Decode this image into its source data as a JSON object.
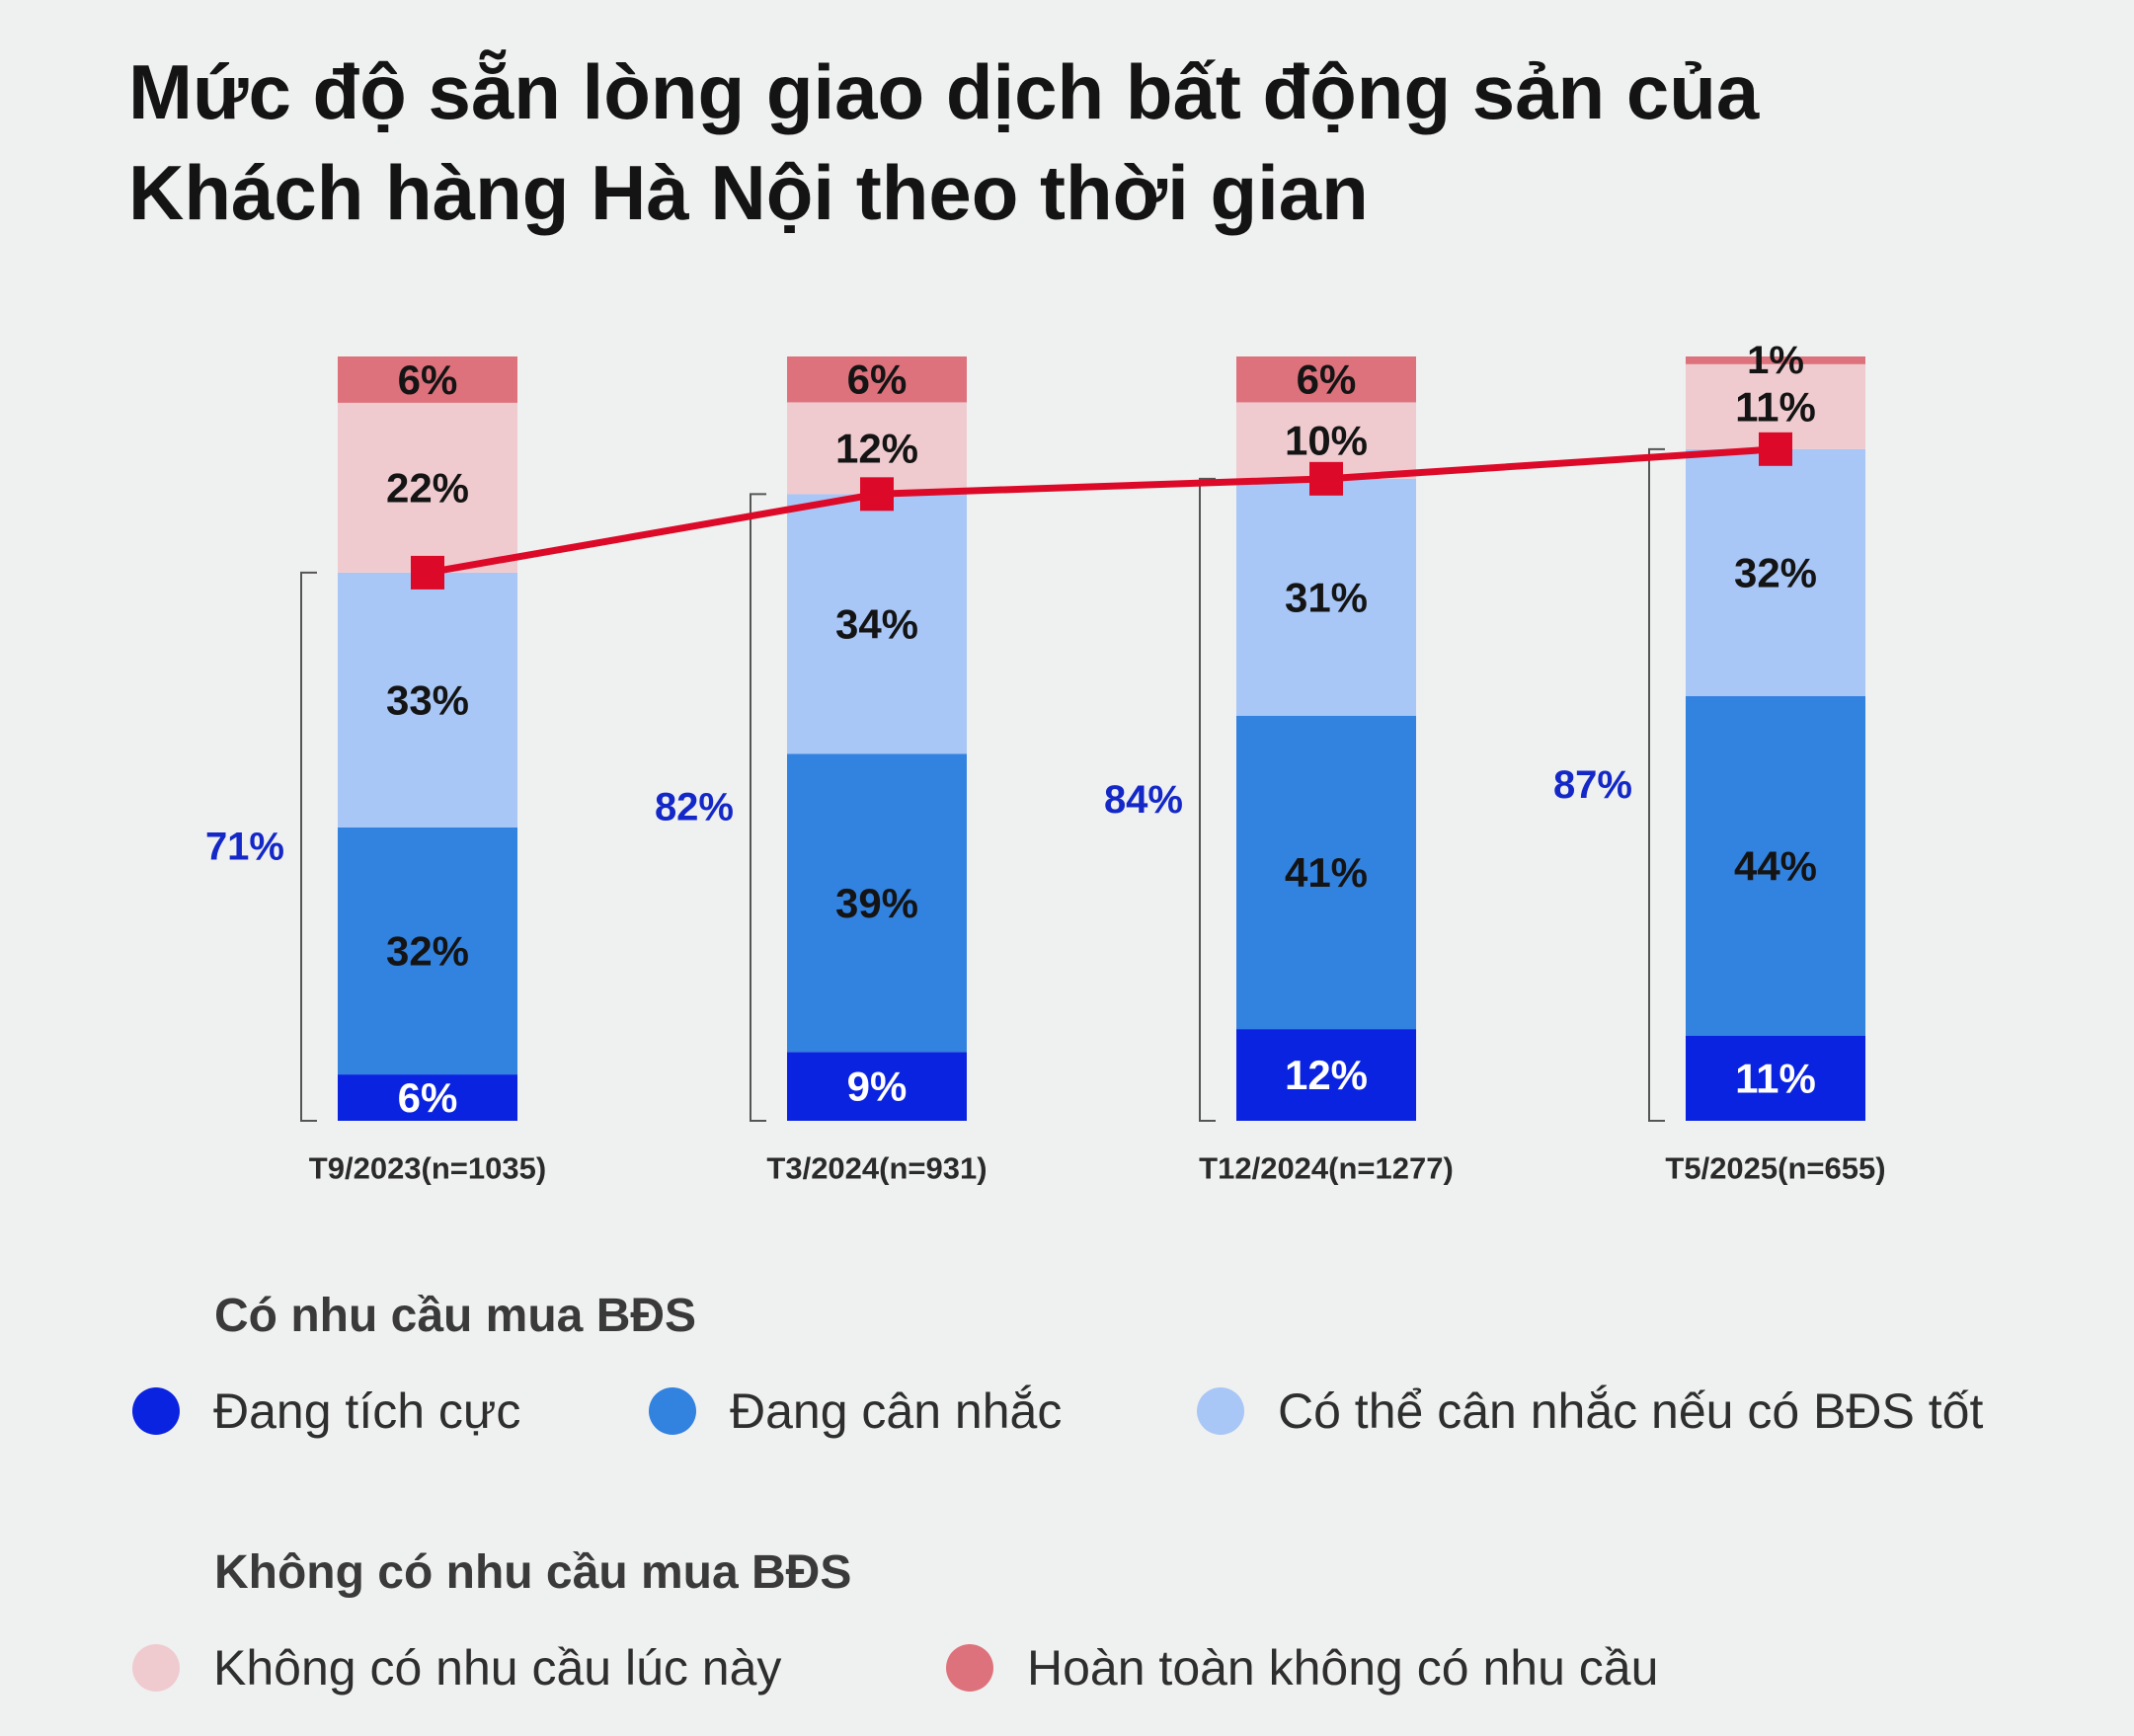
{
  "title": {
    "line1": "Mức độ sẵn lòng giao dịch bất động sản của",
    "line2": "Khách hàng Hà Nội theo thời gian"
  },
  "colors": {
    "dang_tich_cuc": "#0a23e0",
    "dang_can_nhac": "#3282e0",
    "co_the_can_nhac": "#a8c6f6",
    "khong_co_luc_nay": "#efcbd0",
    "hoan_toan_khong": "#de727c",
    "line": "#dc0a28",
    "bracket_label": "#1428c8"
  },
  "legend": {
    "group1_title": "Có nhu cầu mua BĐS",
    "group2_title": "Không có nhu cầu mua BĐS",
    "items": [
      {
        "label": "Đang tích cực",
        "color": "#0a23e0"
      },
      {
        "label": "Đang cân nhắc",
        "color": "#3282e0"
      },
      {
        "label": "Có thể cân nhắc nếu có BĐS tốt",
        "color": "#a8c6f6"
      },
      {
        "label": "Không có nhu cầu lúc này",
        "color": "#efcbd0"
      },
      {
        "label": "Hoàn toàn không có nhu cầu",
        "color": "#de727c"
      }
    ]
  },
  "chart_data": {
    "type": "bar",
    "stacked": true,
    "normalized_percent": true,
    "title": "Mức độ sẵn lòng giao dịch bất động sản của Khách hàng Hà Nội theo thời gian",
    "categories": [
      "T9/2023(n=1035)",
      "T3/2024(n=931)",
      "T12/2024(n=1277)",
      "T5/2025(n=655)"
    ],
    "series": [
      {
        "name": "Đang tích cực",
        "values": [
          6,
          9,
          12,
          11
        ],
        "labels": [
          "6%",
          "9%",
          "12%",
          "11%"
        ],
        "color": "#0a23e0",
        "label_color": "#ffffff"
      },
      {
        "name": "Đang cân nhắc",
        "values": [
          32,
          39,
          41,
          44
        ],
        "labels": [
          "32%",
          "39%",
          "41%",
          "44%"
        ],
        "color": "#3282e0",
        "label_color": "#141414"
      },
      {
        "name": "Có thể cân nhắc nếu có BĐS tốt",
        "values": [
          33,
          34,
          31,
          32
        ],
        "labels": [
          "33%",
          "34%",
          "31%",
          "32%"
        ],
        "color": "#a8c6f6",
        "label_color": "#141414"
      },
      {
        "name": "Không có nhu cầu lúc này",
        "values": [
          22,
          12,
          10,
          11
        ],
        "labels": [
          "22%",
          "12%",
          "10%",
          "11%"
        ],
        "color": "#efcbd0",
        "label_color": "#141414"
      },
      {
        "name": "Hoàn toàn không có nhu cầu",
        "values": [
          6,
          6,
          6,
          1
        ],
        "labels": [
          "6%",
          "6%",
          "6%",
          "1%"
        ],
        "color": "#de727c",
        "label_color": "#141414"
      }
    ],
    "demand_total": {
      "values": [
        71,
        82,
        84,
        87
      ],
      "labels": [
        "71%",
        "82%",
        "84%",
        "87%"
      ]
    },
    "ylim": [
      0,
      100
    ],
    "legend_position": "bottom"
  }
}
